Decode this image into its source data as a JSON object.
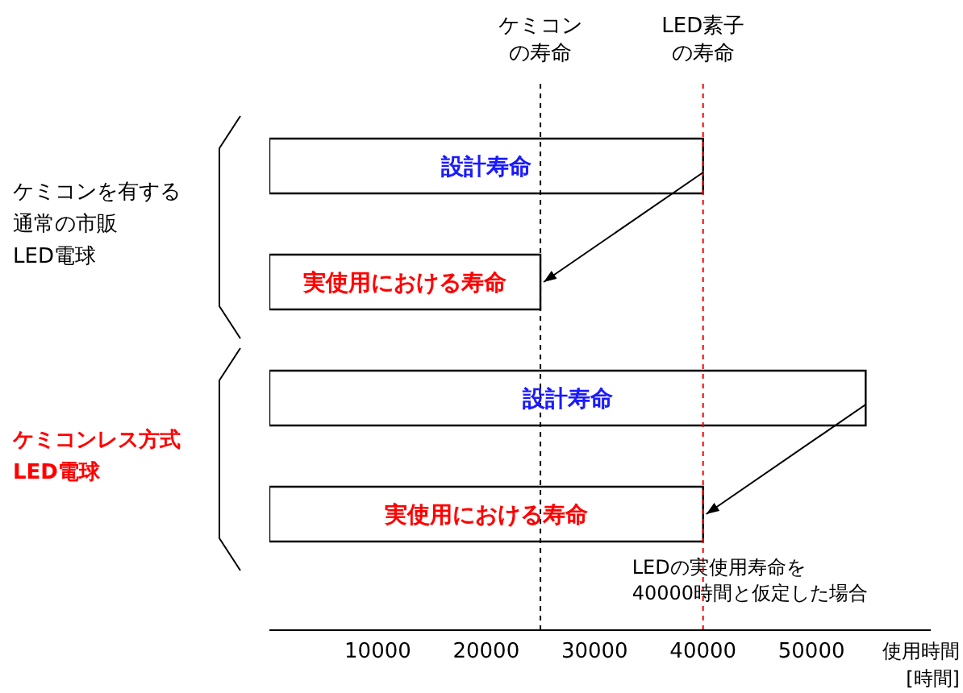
{
  "chart_data": {
    "type": "bar",
    "orientation": "horizontal",
    "categories": [
      null,
      null,
      null,
      null
    ],
    "values": [
      40000,
      25000,
      55000,
      40000
    ],
    "color": "#ffffff",
    "value_labels": [
      "設計寿命",
      "実使用における寿命",
      "設計寿命",
      "実使用における寿命"
    ],
    "xlim": [
      0,
      61000
    ],
    "xticks": [
      10000,
      20000,
      30000,
      40000,
      50000
    ],
    "xlabel": "使用時間[時間]",
    "ref_lines": [
      {
        "axis": "x",
        "value": 25000,
        "label": "ケミコンの寿命",
        "color": "#000000",
        "line_style": "dashed"
      },
      {
        "axis": "x",
        "value": 40000,
        "label": "LED素子の寿命",
        "color": "#ff0000",
        "line_style": "dashed"
      }
    ],
    "annotations": [
      "ケミコンを有する",
      "通常の市販",
      "LED電球",
      "ケミコンレス方式",
      "LED電球",
      "LEDの実使用寿命を",
      "40000時間と仮定した場合"
    ],
    "grid": false,
    "legend": false
  }
}
